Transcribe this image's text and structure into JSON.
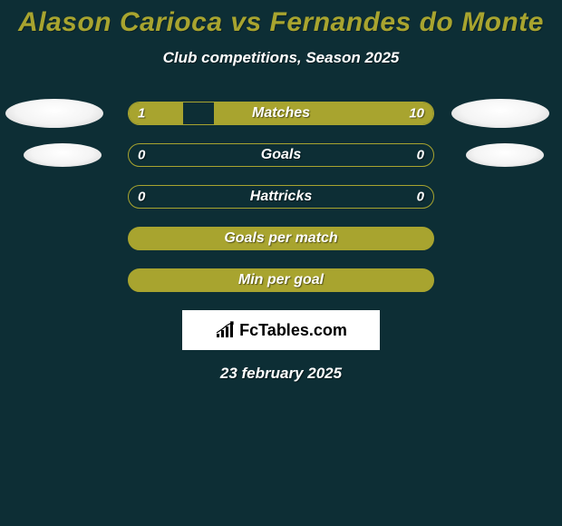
{
  "title": "Alason Carioca vs Fernandes do Monte",
  "subtitle": "Club competitions, Season 2025",
  "date": "23 february 2025",
  "brand": "FcTables.com",
  "background_color": "#0d2e35",
  "accent_color": "#a8a42f",
  "text_color": "#ffffff",
  "stats": [
    {
      "label": "Matches",
      "left_value": "1",
      "right_value": "10",
      "left_fill_pct": 18,
      "right_fill_pct": 72,
      "show_left_icon": true,
      "show_right_icon": true,
      "full_fill": false
    },
    {
      "label": "Goals",
      "left_value": "0",
      "right_value": "0",
      "left_fill_pct": 0,
      "right_fill_pct": 0,
      "show_left_icon": true,
      "show_right_icon": true,
      "full_fill": false
    },
    {
      "label": "Hattricks",
      "left_value": "0",
      "right_value": "0",
      "left_fill_pct": 0,
      "right_fill_pct": 0,
      "show_left_icon": false,
      "show_right_icon": false,
      "full_fill": false
    },
    {
      "label": "Goals per match",
      "left_value": "",
      "right_value": "",
      "left_fill_pct": 0,
      "right_fill_pct": 0,
      "show_left_icon": false,
      "show_right_icon": false,
      "full_fill": true
    },
    {
      "label": "Min per goal",
      "left_value": "",
      "right_value": "",
      "left_fill_pct": 0,
      "right_fill_pct": 0,
      "show_left_icon": false,
      "show_right_icon": false,
      "full_fill": true
    }
  ]
}
